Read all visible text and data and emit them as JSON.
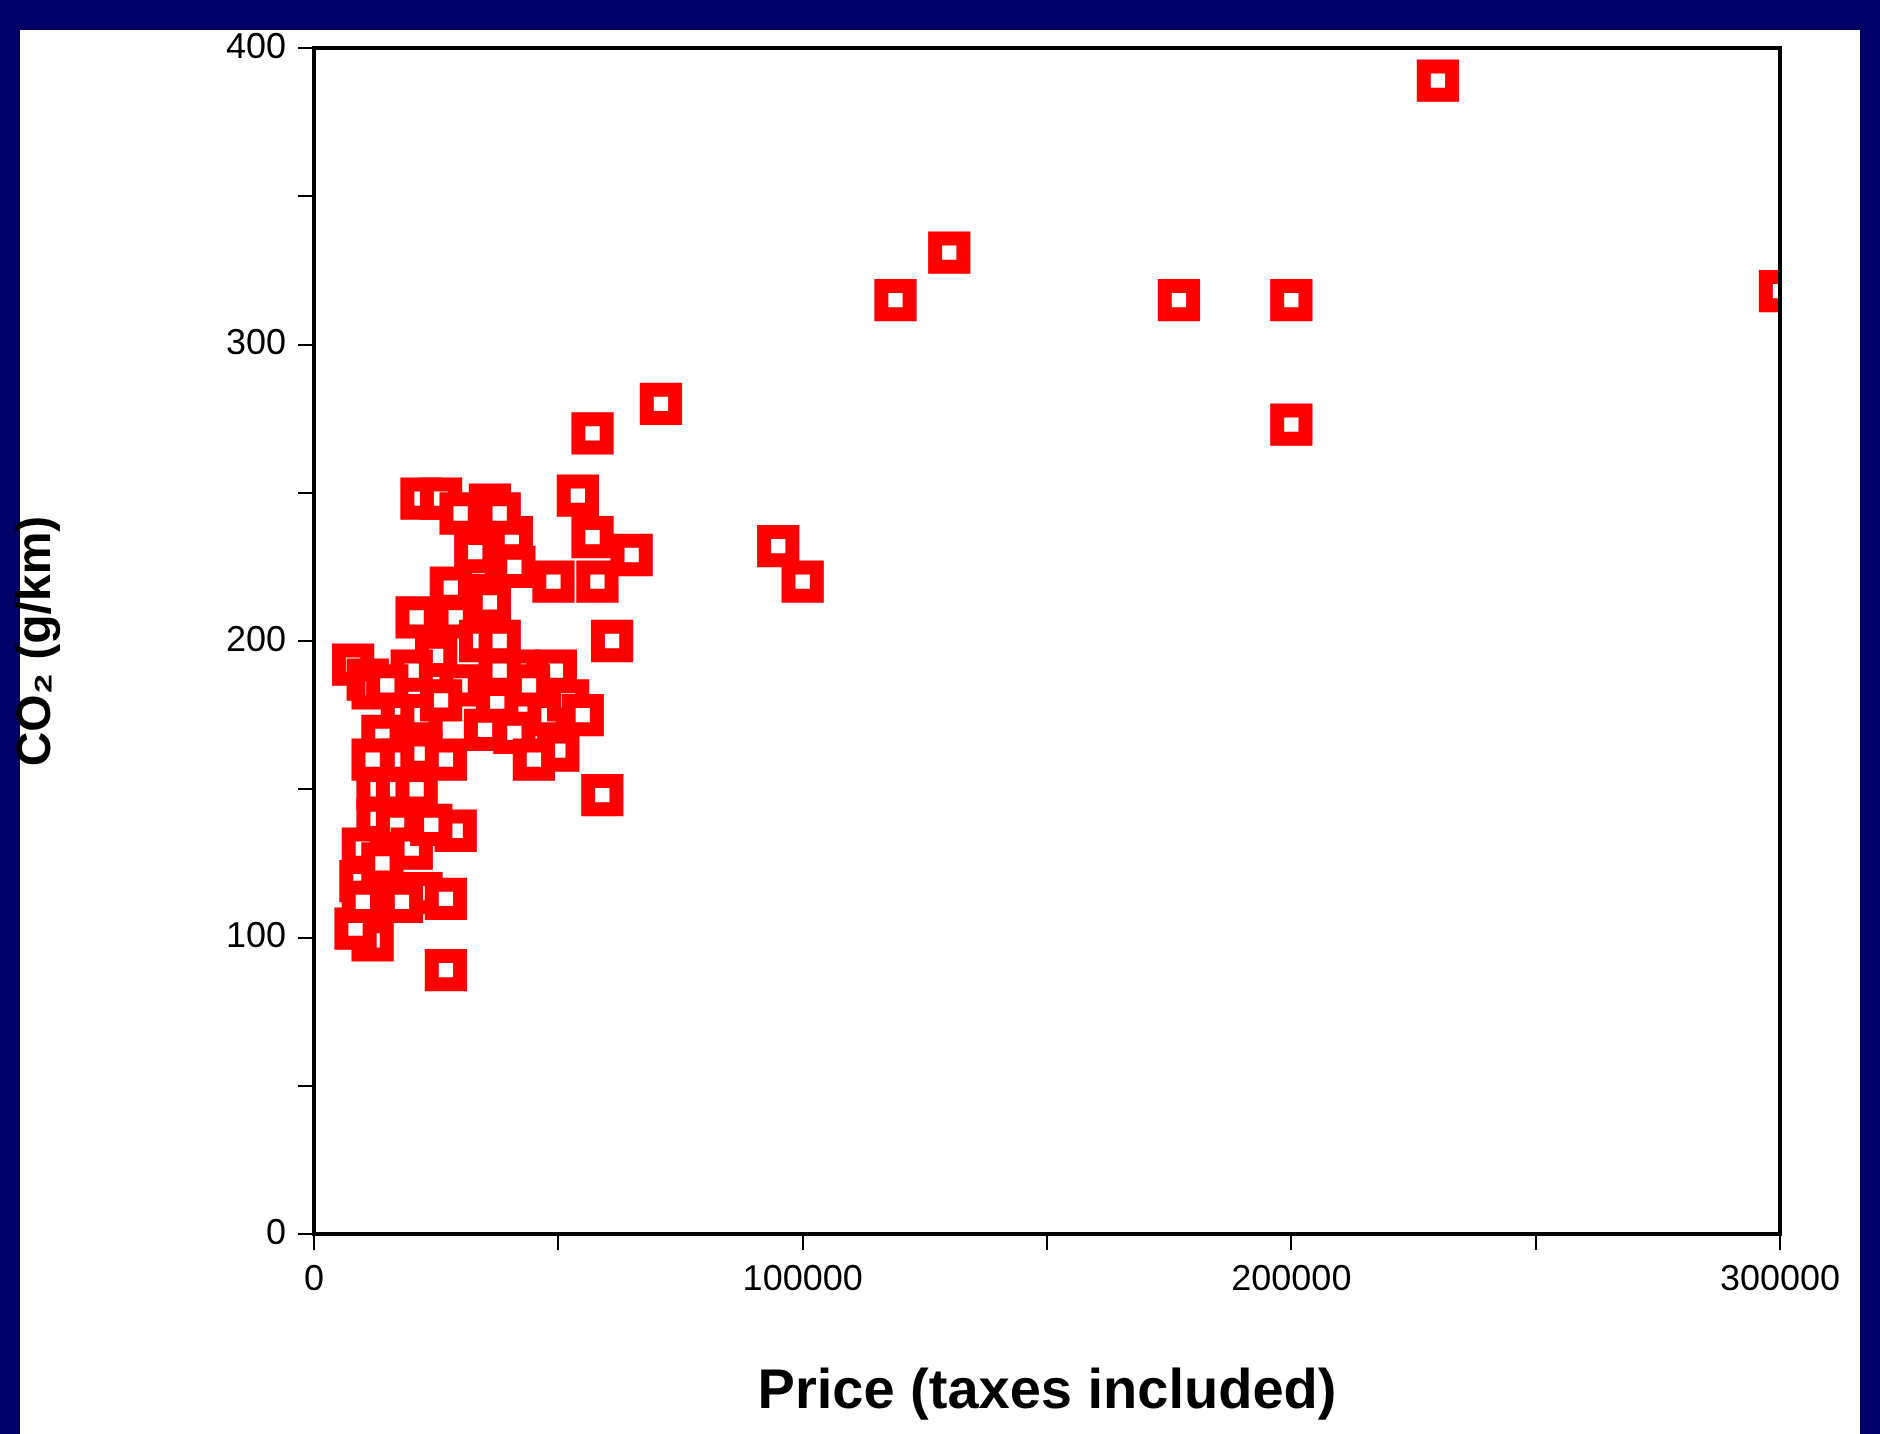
{
  "chart_data": {
    "type": "scatter",
    "xlabel": "Price (taxes included)",
    "ylabel": "CO₂ (g/km)",
    "marker": "square",
    "color": "#ff0000",
    "x": [
      230000,
      300000,
      130000,
      119000,
      177000,
      200000,
      200000,
      95000,
      100000,
      71000,
      57000,
      61000,
      59000,
      65000,
      54000,
      57000,
      58000,
      49000,
      27000,
      29000,
      12000,
      8500,
      9500,
      8000,
      11000,
      36000,
      40500,
      33500,
      41000,
      36000,
      21000,
      29000,
      42000,
      49500,
      12000,
      37500,
      41000,
      50000,
      22000,
      26000,
      30000,
      38000,
      33000,
      28000,
      34000,
      38000,
      25000,
      20000,
      15000,
      30000,
      18000,
      22000,
      26000,
      35000,
      14000,
      18000,
      22000,
      12000,
      13000,
      17000,
      21000,
      13000,
      17000,
      20000,
      10000,
      14000,
      22000,
      27000,
      18000,
      10000,
      45000,
      48000,
      52000,
      55000,
      44000,
      38000,
      24000,
      27000
    ],
    "values": [
      389,
      318,
      331,
      315,
      315,
      315,
      273,
      232,
      220,
      280,
      270,
      200,
      148,
      229,
      249,
      235,
      220,
      220,
      89,
      136,
      99,
      103,
      119,
      192,
      187,
      246,
      235,
      225,
      225,
      213,
      208,
      208,
      190,
      190,
      184,
      179,
      169,
      163,
      248,
      248,
      243,
      243,
      230,
      218,
      200,
      200,
      195,
      190,
      185,
      185,
      175,
      175,
      180,
      170,
      168,
      160,
      162,
      160,
      150,
      150,
      150,
      140,
      138,
      130,
      130,
      125,
      115,
      113,
      112,
      112,
      160,
      175,
      180,
      175,
      185,
      190,
      138,
      160
    ],
    "xlim": [
      0,
      300000
    ],
    "ylim": [
      0,
      400
    ],
    "xticks": [
      0,
      {
        "value": 50000,
        "label": null
      },
      100000,
      {
        "value": 150000,
        "label": null
      },
      200000,
      {
        "value": 250000,
        "label": null
      },
      300000
    ],
    "yticks": [
      0,
      {
        "value": 50,
        "label": null
      },
      100,
      {
        "value": 150,
        "label": null
      },
      200,
      {
        "value": 250,
        "label": null
      },
      300,
      {
        "value": 350,
        "label": null
      },
      400
    ]
  }
}
